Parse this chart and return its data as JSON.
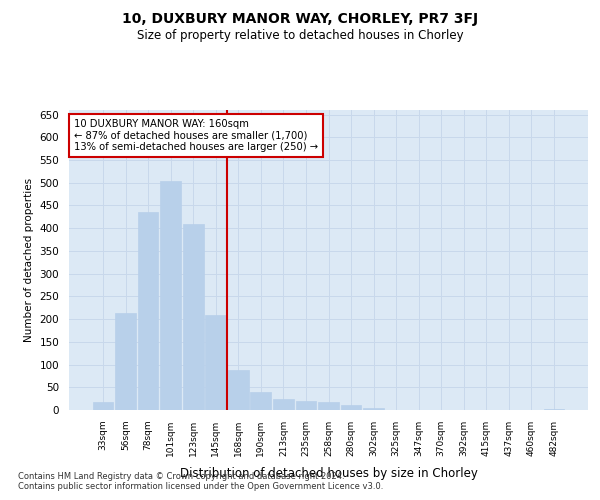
{
  "title": "10, DUXBURY MANOR WAY, CHORLEY, PR7 3FJ",
  "subtitle": "Size of property relative to detached houses in Chorley",
  "xlabel": "Distribution of detached houses by size in Chorley",
  "ylabel": "Number of detached properties",
  "footnote1": "Contains HM Land Registry data © Crown copyright and database right 2024.",
  "footnote2": "Contains public sector information licensed under the Open Government Licence v3.0.",
  "annotation_line1": "10 DUXBURY MANOR WAY: 160sqm",
  "annotation_line2": "← 87% of detached houses are smaller (1,700)",
  "annotation_line3": "13% of semi-detached houses are larger (250) →",
  "bar_color": "#b8d0ea",
  "bar_edge_color": "#b8d0ea",
  "grid_color": "#c8d8eb",
  "bg_color": "#dce9f5",
  "vline_color": "#cc0000",
  "annotation_box_color": "#cc0000",
  "categories": [
    "33sqm",
    "56sqm",
    "78sqm",
    "101sqm",
    "123sqm",
    "145sqm",
    "168sqm",
    "190sqm",
    "213sqm",
    "235sqm",
    "258sqm",
    "280sqm",
    "302sqm",
    "325sqm",
    "347sqm",
    "370sqm",
    "392sqm",
    "415sqm",
    "437sqm",
    "460sqm",
    "482sqm"
  ],
  "values": [
    18,
    213,
    435,
    503,
    410,
    210,
    88,
    40,
    25,
    20,
    18,
    10,
    5,
    0,
    0,
    0,
    0,
    0,
    0,
    0,
    3
  ],
  "vline_x": 5.5,
  "ylim": [
    0,
    660
  ],
  "yticks": [
    0,
    50,
    100,
    150,
    200,
    250,
    300,
    350,
    400,
    450,
    500,
    550,
    600,
    650
  ]
}
